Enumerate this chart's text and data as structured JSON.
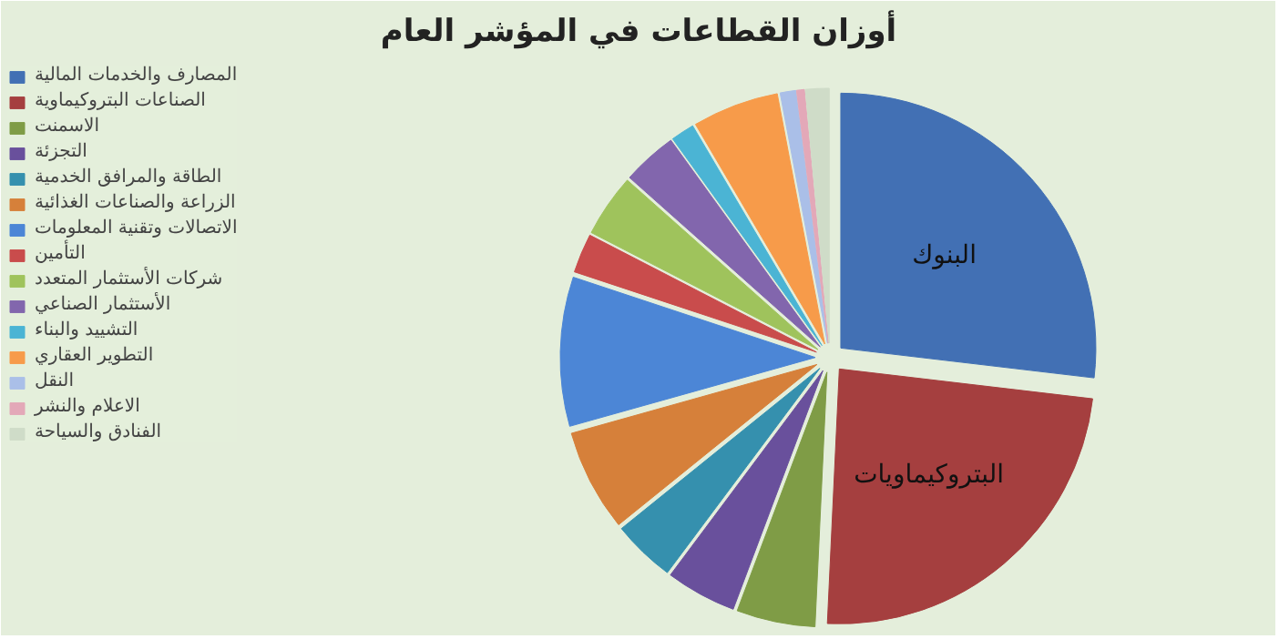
{
  "chart_data": {
    "type": "pie",
    "title": "أوزان القطاعات في المؤشر العام",
    "categories": [
      "المصارف والخدمات المالية",
      "الصناعات البتروكيماوية",
      "الاسمنت",
      "التجزئة",
      "الطاقة والمرافق الخدمية",
      "الزراعة والصناعات الغذائية",
      "الاتصالات وتقنية المعلومات",
      "التأمين",
      "شركات الأستثمار المتعدد",
      "الأستثمار الصناعي",
      "التشييد والبناء",
      "التطوير العقاري",
      "النقل",
      "الاعلام والنشر",
      "الفنادق والسياحة"
    ],
    "values": [
      27,
      24,
      5,
      4.5,
      4,
      6.5,
      9.5,
      2.5,
      4,
      3.5,
      1.5,
      5.5,
      1,
      0.5,
      1.5
    ],
    "colors": [
      "#4270b4",
      "#a53f3f",
      "#7f9c46",
      "#69509c",
      "#3590ae",
      "#d6803a",
      "#4c86d6",
      "#c94c4c",
      "#9fc35c",
      "#8266ad",
      "#4bb4d4",
      "#f79b4a",
      "#aabfe8",
      "#e3a8b8",
      "#cfdcc8"
    ],
    "annotations": [
      {
        "text": "البنوك",
        "x": "المصارف والخدمات المالية"
      },
      {
        "text": "البتروكيماويات",
        "x": "الصناعات البتروكيماوية"
      }
    ],
    "legend": "left"
  }
}
